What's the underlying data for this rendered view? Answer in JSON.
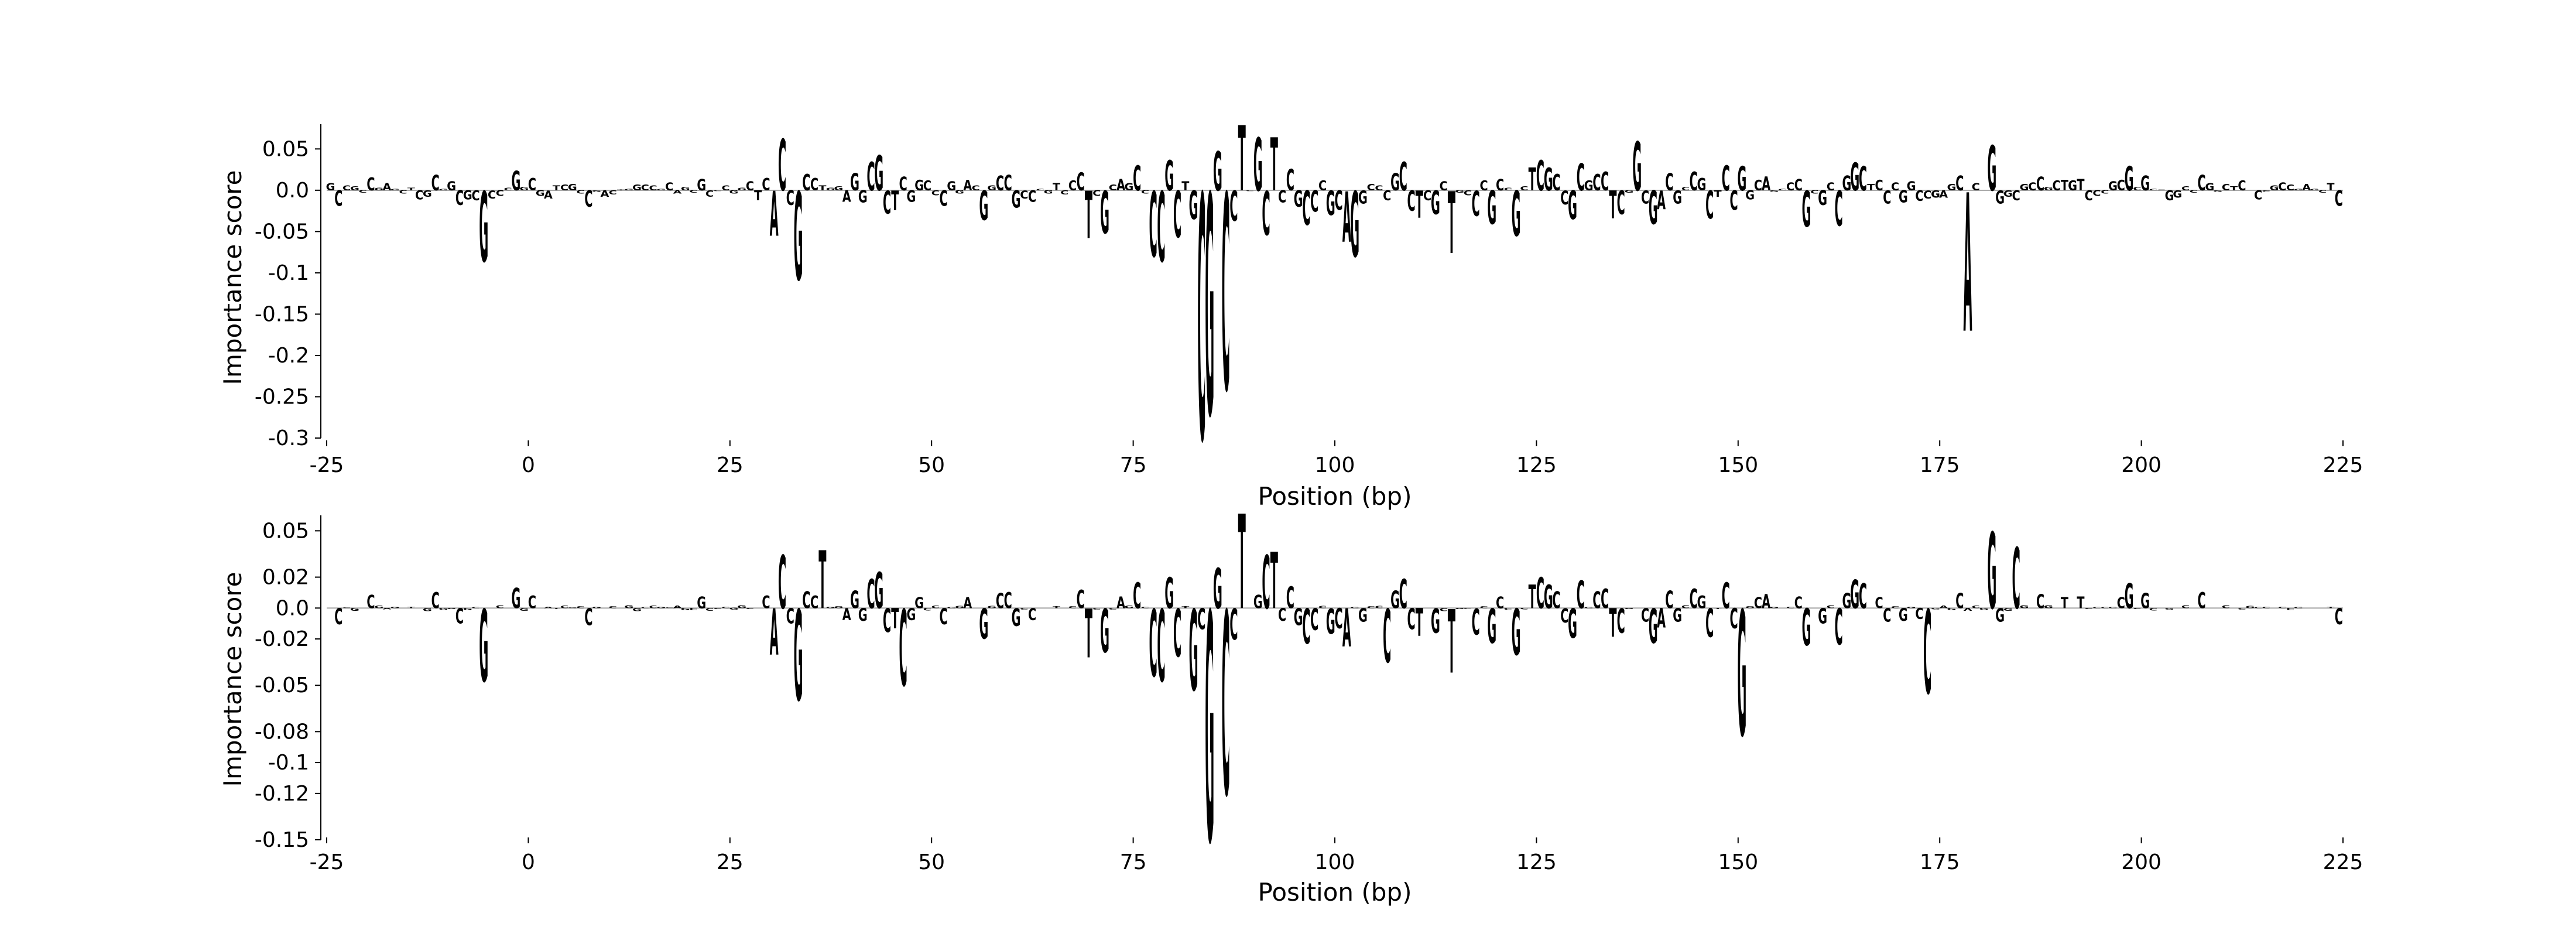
{
  "figure": {
    "panels": [
      {
        "id": "top",
        "xlabel": "Position (bp)",
        "ylabel": "Importance score",
        "x_ticks": [
          "-25",
          "0",
          "25",
          "50",
          "75",
          "100",
          "125",
          "150",
          "175",
          "200",
          "225"
        ],
        "y_ticks": [
          "0.05",
          "0.0",
          "-0.05",
          "-0.1",
          "-0.15",
          "-0.2",
          "-0.25",
          "-0.3"
        ]
      },
      {
        "id": "bottom",
        "xlabel": "Position (bp)",
        "ylabel": "Importance score",
        "x_ticks": [
          "-25",
          "0",
          "25",
          "50",
          "75",
          "100",
          "125",
          "150",
          "175",
          "200",
          "225"
        ],
        "y_ticks": [
          "0.05",
          "0.02",
          "0.0",
          "-0.02",
          "-0.05",
          "-0.08",
          "-0.1",
          "-0.12",
          "-0.15"
        ]
      }
    ]
  },
  "colors": {
    "A": "#008000",
    "C": "#0000ff",
    "G": "#ffa500",
    "T": "#ff0000"
  },
  "chart_data": [
    {
      "type": "sequence-logo",
      "xlabel": "Position (bp)",
      "ylabel": "Importance score",
      "xlim": [
        -25,
        225
      ],
      "ylim": [
        -0.3,
        0.08
      ],
      "x_ticks": [
        -25,
        0,
        25,
        50,
        75,
        100,
        125,
        150,
        175,
        200,
        225
      ],
      "y_ticks": [
        0.05,
        0.0,
        -0.05,
        -0.1,
        -0.15,
        -0.2,
        -0.25,
        -0.3
      ],
      "sequence": "GCCGCCGAGCTCGCGGCGCGCCCGGCGATCGCCGACTGGCCGCAGCGCCCGGCTCACCGCCTGGAGGCGCTCGGCCCGGACGGCCGCCCGTCCCTCGCAGCCCCGCTGCGGCCTCGCTCCGCCCGCAGGCCCGCCTCGCTGCCCGCCGCTCGCCGCGCCTCGGCGACGCCGCTCCGGCAGCCCGCGCCGGCTCCCGGCCGAGCACGGGGCGCCGCTGTCCCGCGCGCCGGCCCGGCTC",
      "scores": [
        0.009,
        -0.019,
        0.006,
        0.005,
        -0.003,
        0.016,
        0.003,
        0.009,
        0.002,
        -0.004,
        0.003,
        -0.011,
        -0.008,
        0.019,
        0.002,
        0.011,
        -0.018,
        -0.011,
        -0.012,
        -0.086,
        -0.01,
        -0.007,
        0.003,
        0.024,
        0.004,
        0.015,
        -0.007,
        -0.01,
        0.006,
        0.007,
        0.008,
        -0.004,
        -0.02,
        -0.002,
        -0.008,
        -0.005,
        0.001,
        0.002,
        0.007,
        0.007,
        0.006,
        0.002,
        0.01,
        -0.004,
        0.004,
        -0.003,
        0.014,
        -0.008,
        -0.001,
        0.006,
        -0.004,
        0.003,
        0.011,
        -0.012,
        0.015,
        -0.055,
        0.062,
        -0.018,
        -0.108,
        0.02,
        0.015,
        0.006,
        0.003,
        0.005,
        -0.014,
        0.021,
        -0.015,
        0.035,
        0.043,
        -0.028,
        -0.024,
        0.017,
        -0.014,
        0.013,
        0.012,
        -0.006,
        -0.019,
        0.011,
        -0.004,
        0.013,
        0.006,
        -0.036,
        0.006,
        0.018,
        0.019,
        -0.021,
        -0.01,
        -0.014,
        0.002,
        -0.004,
        0.009,
        -0.005,
        0.012,
        0.022,
        -0.058,
        -0.007,
        -0.052,
        0.007,
        0.014,
        0.009,
        0.031,
        -0.004,
        -0.08,
        -0.086,
        0.037,
        -0.057,
        0.011,
        -0.035,
        -0.025,
        -0.02,
        0.048,
        -0.018,
        -0.037,
        0.011,
        -0.001,
        0.016,
        -0.054,
        0.014,
        -0.015,
        0.026,
        -0.02,
        -0.042,
        -0.026,
        0.012,
        -0.03,
        -0.024,
        -0.062,
        0.0,
        -0.016,
        0.008,
        0.006,
        -0.012,
        0.021,
        0.035,
        -0.025,
        -0.033,
        -0.012,
        -0.029,
        0.011,
        -0.076,
        -0.003,
        -0.006,
        -0.031,
        0.012,
        -0.041,
        0.014,
        0.003,
        -0.055,
        0.005,
        0.028,
        0.037,
        0.028,
        0.02,
        -0.017,
        -0.035,
        0.033,
        0.012,
        0.02,
        0.023,
        -0.034,
        -0.029,
        -0.003,
        -0.012,
        -0.016,
        -0.041,
        -0.023,
        0.021,
        -0.016,
        0.004,
        0.023,
        0.015,
        -0.034,
        -0.008,
        0.031,
        -0.024,
        0.03,
        -0.011,
        0.013,
        0.017,
        -0.002,
        0.002,
        0.01,
        0.014,
        -0.044,
        -0.004,
        -0.018,
        0.01,
        -0.043,
        0.018,
        0.034,
        0.03,
        0.008,
        0.013,
        -0.016,
        0.01,
        -0.015,
        0.011,
        -0.013,
        -0.01,
        -0.009,
        -0.009,
        0.008,
        0.018,
        -0.008,
        0.009,
        0.0,
        0.013,
        -0.016,
        -0.008,
        -0.012,
        0.008,
        0.01,
        0.017,
        0.004,
        0.012,
        0.013,
        0.012,
        0.014,
        -0.012,
        -0.007,
        -0.004,
        0.011,
        0.013,
        0.03,
        0.004,
        0.018,
        0.002,
        0.001,
        -0.012,
        -0.009,
        0.005,
        -0.003,
        0.019,
        0.009,
        -0.002,
        0.008,
        0.005,
        0.012,
        0.0,
        -0.011,
        -0.002,
        0.006,
        0.01,
        0.007,
        0.002,
        0.008,
        0.002,
        -0.003
      ],
      "highlights": [
        {
          "x": 83,
          "value": -0.3
        },
        {
          "x": 84,
          "value": -0.27
        },
        {
          "x": 86,
          "value": -0.24
        },
        {
          "x": 88,
          "value": 0.08
        },
        {
          "x": 90,
          "value": 0.065
        },
        {
          "x": 92,
          "value": 0.065
        },
        {
          "x": 102,
          "value": -0.08
        },
        {
          "x": 178,
          "value": -0.17
        },
        {
          "x": 31,
          "value": 0.063
        },
        {
          "x": 137,
          "value": 0.06
        },
        {
          "x": 181,
          "value": 0.055
        }
      ]
    },
    {
      "type": "sequence-logo",
      "xlabel": "Position (bp)",
      "ylabel": "Importance score",
      "xlim": [
        -25,
        225
      ],
      "ylim": [
        -0.15,
        0.06
      ],
      "x_ticks": [
        -25,
        0,
        25,
        50,
        75,
        100,
        125,
        150,
        175,
        200,
        225
      ],
      "y_ticks": [
        0.05,
        0.02,
        0.0,
        -0.02,
        -0.05,
        -0.08,
        -0.1,
        -0.12,
        -0.15
      ],
      "highlights": [
        {
          "x": 84,
          "value": -0.15
        },
        {
          "x": 86,
          "value": -0.12
        },
        {
          "x": 88,
          "value": 0.062
        },
        {
          "x": 91,
          "value": 0.035
        },
        {
          "x": 92,
          "value": 0.037
        },
        {
          "x": 82,
          "value": -0.053
        },
        {
          "x": 31,
          "value": 0.035
        },
        {
          "x": 36,
          "value": 0.038
        },
        {
          "x": 150,
          "value": -0.082
        },
        {
          "x": 173,
          "value": -0.055
        },
        {
          "x": 181,
          "value": 0.05
        },
        {
          "x": 184,
          "value": 0.04
        },
        {
          "x": 46,
          "value": -0.05
        },
        {
          "x": 101,
          "value": -0.025
        },
        {
          "x": 106,
          "value": -0.035
        }
      ]
    }
  ]
}
